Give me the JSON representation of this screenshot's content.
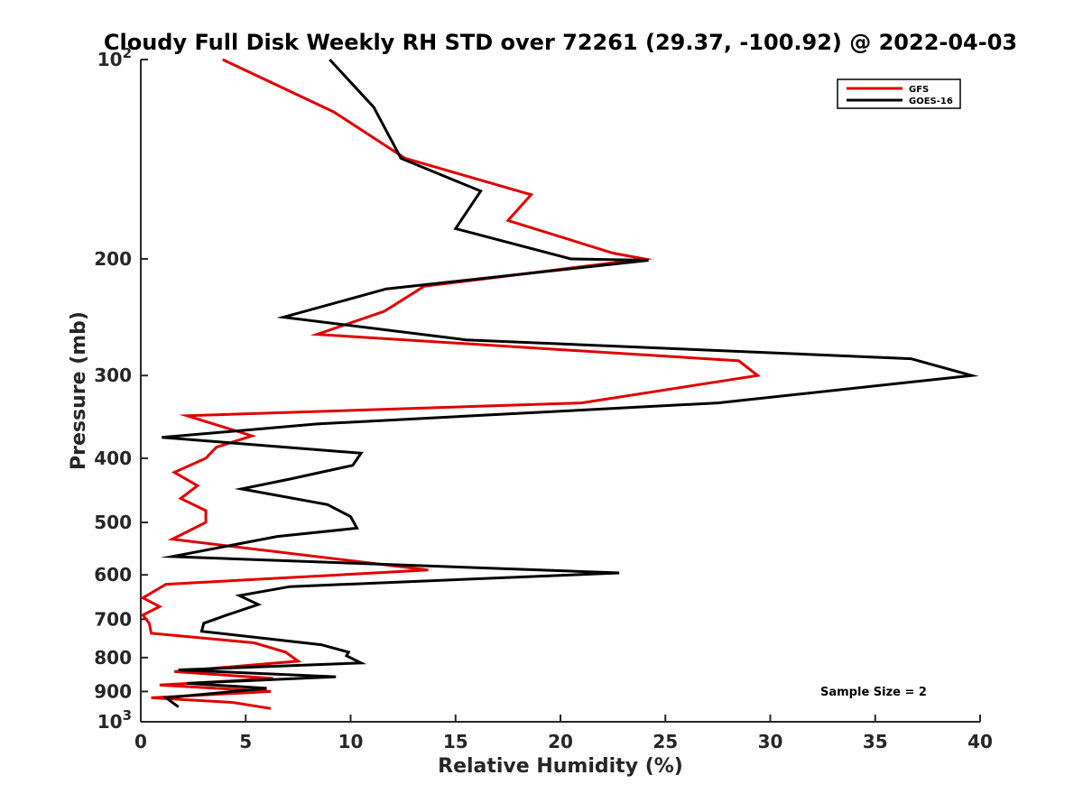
{
  "chart_data": {
    "type": "line",
    "title": "Cloudy Full Disk Weekly RH STD over 72261 (29.37, -100.92) @ 2022-04-03",
    "xlabel": "Relative Humidity (%)",
    "ylabel": "Pressure (mb)",
    "xlim": [
      0,
      40
    ],
    "ylim": [
      100,
      1000
    ],
    "y_scale": "log",
    "y_reversed": true,
    "x_ticks": [
      0,
      5,
      10,
      15,
      20,
      25,
      30,
      35,
      40
    ],
    "x_tick_labels": [
      "0",
      "5",
      "10",
      "15",
      "20",
      "25",
      "30",
      "35",
      "40"
    ],
    "y_ticks": [
      100,
      200,
      300,
      400,
      500,
      600,
      700,
      800,
      900,
      1000
    ],
    "y_tick_labels": [
      {
        "base": "10",
        "exp": "2"
      },
      {
        "text": "200"
      },
      {
        "text": "300"
      },
      {
        "text": "400"
      },
      {
        "text": "500"
      },
      {
        "text": "600"
      },
      {
        "text": "700"
      },
      {
        "text": "800"
      },
      {
        "text": "900"
      },
      {
        "base": "10",
        "exp": "3"
      }
    ],
    "grid": false,
    "legend_position": "top-right",
    "annotation": "Sample Size = 2",
    "series": [
      {
        "name": "GFS",
        "color": "#e00000",
        "x": [
          3.9,
          9.2,
          12.6,
          18.6,
          17.5,
          22.5,
          24.0,
          13.5,
          11.6,
          8.4,
          28.5,
          29.4,
          21.0,
          2.2,
          5.3,
          3.6,
          3.1,
          1.6,
          2.7,
          1.9,
          3.1,
          3.1,
          1.5,
          13.7,
          1.2,
          0.1,
          0.9,
          0.1,
          0.4,
          0.5,
          5.4,
          6.9,
          7.5,
          1.6,
          6.3,
          0.9,
          6.2,
          0.5,
          4.4,
          6.2
        ],
        "y": [
          100,
          120,
          141,
          160,
          175,
          196,
          200,
          220,
          240,
          260,
          285,
          300,
          330,
          345,
          370,
          385,
          400,
          420,
          440,
          460,
          480,
          500,
          530,
          590,
          620,
          650,
          670,
          690,
          710,
          735,
          760,
          785,
          810,
          840,
          860,
          880,
          900,
          920,
          935,
          955
        ]
      },
      {
        "name": "GOES-16",
        "color": "#000000",
        "x": [
          9.0,
          11.1,
          12.4,
          16.2,
          15.0,
          20.5,
          24.2,
          11.7,
          6.8,
          15.5,
          36.7,
          39.6,
          27.5,
          8.4,
          1.0,
          10.5,
          10.1,
          7.1,
          4.8,
          8.9,
          10.0,
          10.3,
          6.5,
          1.5,
          22.8,
          7.1,
          4.7,
          5.6,
          4.1,
          3.0,
          2.9,
          8.6,
          9.9,
          9.8,
          10.5,
          1.8,
          9.3,
          2.2,
          6.0,
          1.2,
          1.8
        ],
        "y": [
          100,
          118,
          141,
          158,
          180,
          200,
          201,
          222,
          245,
          265,
          283,
          300,
          330,
          355,
          372,
          393,
          410,
          430,
          445,
          470,
          490,
          510,
          525,
          563,
          596,
          625,
          645,
          665,
          690,
          710,
          730,
          765,
          785,
          795,
          815,
          835,
          855,
          875,
          890,
          920,
          950
        ]
      }
    ]
  }
}
